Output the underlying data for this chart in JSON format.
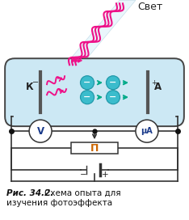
{
  "title": "Рис. 34.2.",
  "subtitle": "Схема опыта для\nизучения фотоэффекта",
  "background": "#ffffff",
  "tube_fill": "#cce8f4",
  "tube_stroke": "#444444",
  "label_K": "К",
  "label_A": "А",
  "label_V": "V",
  "label_uA": "μА",
  "label_P": "П",
  "label_light": "Свет",
  "electron_color": "#3bbccc",
  "electron_edge": "#2299aa",
  "arrow_color": "#00aa88",
  "light_color": "#ee1188",
  "circuit_color": "#333333",
  "node_color": "#111111",
  "meter_text_color": "#1a3a8a",
  "P_text_color": "#cc6600"
}
